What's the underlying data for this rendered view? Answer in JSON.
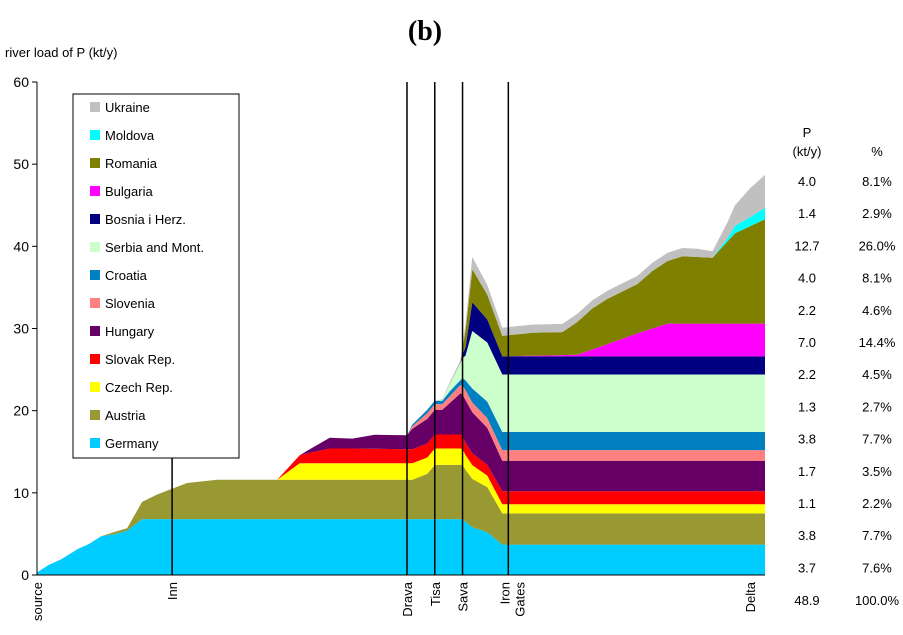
{
  "chart_data": {
    "type": "area",
    "panel_label": "(b)",
    "ylabel": "river load of P (kt/y)",
    "ylim": [
      0,
      60
    ],
    "yticks": [
      0,
      10,
      20,
      30,
      40,
      50,
      60
    ],
    "grid": false,
    "legend_position": "top-left",
    "x": [
      0,
      1.5,
      3.2,
      5.5,
      7,
      8.5,
      10.5,
      12,
      14,
      16,
      18,
      20,
      24,
      27,
      32,
      35,
      36,
      39,
      42,
      45,
      49.3,
      50,
      52,
      53,
      54,
      54.6,
      55,
      56,
      56.4,
      56.7,
      57.1,
      58,
      60,
      62,
      64,
      65,
      66,
      68,
      70,
      72,
      74,
      76,
      78,
      80,
      82,
      84,
      86,
      88,
      90,
      92,
      93,
      95,
      97
    ],
    "x_labels": [
      {
        "text": "source",
        "x": 0
      },
      {
        "text": "Inn",
        "x": 18
      },
      {
        "text": "Drava",
        "x": 49.3
      },
      {
        "text": "Tisa",
        "x": 53
      },
      {
        "text": "Sava",
        "x": 56.7
      },
      {
        "text": "Iron",
        "x": 62.3
      },
      {
        "text": "Gates",
        "x": 64.3
      },
      {
        "text": "Delta",
        "x": 95
      }
    ],
    "markers": [
      {
        "name": "Inn",
        "x": 18,
        "top": 15
      },
      {
        "name": "Drava",
        "x": 49.3,
        "top": 60
      },
      {
        "name": "Tisa",
        "x": 53,
        "top": 60
      },
      {
        "name": "Sava",
        "x": 56.7,
        "top": 60
      },
      {
        "name": "Iron Gates",
        "x": 62.8,
        "top": 60
      }
    ],
    "series": [
      {
        "name": "Germany",
        "color": "#00ccff",
        "values": [
          0.3,
          1.2,
          1.9,
          3.2,
          3.8,
          4.7,
          5.0,
          5.4,
          6.8,
          6.8,
          6.8,
          6.8,
          6.8,
          6.8,
          6.8,
          6.8,
          6.8,
          6.8,
          6.8,
          6.8,
          6.8,
          6.8,
          6.8,
          6.8,
          6.8,
          6.8,
          6.8,
          6.8,
          6.8,
          6.8,
          6.5,
          5.8,
          5.2,
          3.7,
          3.7,
          3.7,
          3.7,
          3.7,
          3.7,
          3.7,
          3.7,
          3.7,
          3.7,
          3.7,
          3.7,
          3.7,
          3.7,
          3.7,
          3.7,
          3.7,
          3.7,
          3.7,
          3.7
        ]
      },
      {
        "name": "Austria",
        "color": "#999933",
        "values": [
          0.0,
          0.0,
          0.0,
          0.0,
          0.0,
          0.0,
          0.3,
          0.3,
          2.1,
          3.0,
          3.7,
          4.4,
          4.8,
          4.8,
          4.8,
          4.8,
          4.8,
          4.8,
          4.8,
          4.8,
          4.8,
          4.8,
          5.5,
          6.6,
          6.6,
          6.6,
          6.6,
          6.6,
          6.6,
          6.6,
          6.3,
          5.9,
          5.5,
          3.8,
          3.8,
          3.8,
          3.8,
          3.8,
          3.8,
          3.8,
          3.8,
          3.8,
          3.8,
          3.8,
          3.8,
          3.8,
          3.8,
          3.8,
          3.8,
          3.8,
          3.8,
          3.8,
          3.8
        ]
      },
      {
        "name": "Czech Rep.",
        "color": "#ffff00",
        "values": [
          0,
          0,
          0,
          0,
          0,
          0,
          0,
          0,
          0,
          0,
          0,
          0,
          0,
          0,
          0,
          0,
          0,
          0,
          0,
          0,
          0,
          0,
          0,
          0,
          0,
          0,
          0,
          0,
          0,
          0,
          0,
          0,
          0,
          0,
          0,
          0,
          0,
          0,
          0,
          0,
          0,
          0,
          0,
          0,
          0,
          0,
          0,
          0,
          0,
          0,
          0,
          0,
          0
        ]
      },
      {
        "name": "Slovak Rep.",
        "color": "#ff0000",
        "values": [
          0,
          0,
          0,
          0,
          0,
          0,
          0,
          0,
          0,
          0,
          0,
          0,
          0,
          0,
          0,
          0,
          0,
          0,
          0,
          0,
          0,
          0,
          0,
          0,
          0,
          0,
          0,
          0,
          0,
          0,
          0,
          0,
          0,
          0,
          0,
          0,
          0,
          0,
          0,
          0,
          0,
          0,
          0,
          0,
          0,
          0,
          0,
          0,
          0,
          0,
          0,
          0,
          0
        ]
      },
      {
        "name": "Hungary",
        "color": "#660066",
        "values": [
          0,
          0,
          0,
          0,
          0,
          0,
          0,
          0,
          0,
          0,
          0,
          0,
          0,
          0,
          0,
          0,
          0,
          0,
          0,
          0,
          0,
          0,
          0,
          0,
          0,
          0,
          0,
          0,
          0,
          0,
          0,
          0,
          0,
          0,
          0,
          0,
          0,
          0,
          0,
          0,
          0,
          0,
          0,
          0,
          0,
          0,
          0,
          0,
          0,
          0,
          0,
          0,
          0
        ]
      },
      {
        "name": "Slovenia",
        "color": "#ff8080",
        "values": [
          0,
          0,
          0,
          0,
          0,
          0,
          0,
          0,
          0,
          0,
          0,
          0,
          0,
          0,
          0,
          0,
          0,
          0,
          0,
          0,
          0,
          0,
          0,
          0,
          0,
          0,
          0,
          0,
          0,
          0,
          0,
          0,
          0,
          0,
          0,
          0,
          0,
          0,
          0,
          0,
          0,
          0,
          0,
          0,
          0,
          0,
          0,
          0,
          0,
          0,
          0,
          0,
          0
        ]
      },
      {
        "name": "Croatia",
        "color": "#0080c0",
        "values": [
          0,
          0,
          0,
          0,
          0,
          0,
          0,
          0,
          0,
          0,
          0,
          0,
          0,
          0,
          0,
          0,
          0,
          0,
          0,
          0,
          0,
          0,
          0,
          0,
          0,
          0,
          0,
          0,
          0,
          0,
          0,
          0,
          0,
          0,
          0,
          0,
          0,
          0,
          0,
          0,
          0,
          0,
          0,
          0,
          0,
          0,
          0,
          0,
          0,
          0,
          0,
          0,
          0
        ]
      },
      {
        "name": "Serbia and Mont.",
        "color": "#ccffcc",
        "values": [
          0,
          0,
          0,
          0,
          0,
          0,
          0,
          0,
          0,
          0,
          0,
          0,
          0,
          0,
          0,
          0,
          0,
          0,
          0,
          0,
          0,
          0,
          0,
          0,
          0,
          0,
          0,
          0,
          0,
          0,
          0,
          0,
          0,
          0,
          0,
          0,
          0,
          0,
          0,
          0,
          0,
          0,
          0,
          0,
          0,
          0,
          0,
          0,
          0,
          0,
          0,
          0,
          0
        ]
      },
      {
        "name": "Bosnia i Herz.",
        "color": "#000080",
        "values": [
          0,
          0,
          0,
          0,
          0,
          0,
          0,
          0,
          0,
          0,
          0,
          0,
          0,
          0,
          0,
          0,
          0,
          0,
          0,
          0,
          0,
          0,
          0,
          0,
          0,
          0,
          0,
          0,
          0,
          0,
          0,
          0,
          0,
          0,
          0,
          0,
          0,
          0,
          0,
          0,
          0,
          0,
          0,
          0,
          0,
          0,
          0,
          0,
          0,
          0,
          0,
          0,
          0
        ]
      },
      {
        "name": "Bulgaria",
        "color": "#ff00ff",
        "values": [
          0,
          0,
          0,
          0,
          0,
          0,
          0,
          0,
          0,
          0,
          0,
          0,
          0,
          0,
          0,
          0,
          0,
          0,
          0,
          0,
          0,
          0,
          0,
          0,
          0,
          0,
          0,
          0,
          0,
          0,
          0,
          0,
          0,
          0,
          0,
          0,
          0,
          0,
          0,
          0,
          0,
          0,
          0,
          0,
          0,
          0,
          0,
          0,
          0,
          0,
          0,
          0,
          0
        ]
      },
      {
        "name": "Romania",
        "color": "#808000",
        "values": [
          0,
          0,
          0,
          0,
          0,
          0,
          0,
          0,
          0,
          0,
          0,
          0,
          0,
          0,
          0,
          0,
          0,
          0,
          0,
          0,
          0,
          0,
          0,
          0,
          0,
          0,
          0,
          0,
          0,
          0,
          0,
          0,
          0,
          0,
          0,
          0,
          0,
          0,
          0,
          0,
          0,
          0,
          0,
          0,
          0,
          0,
          0,
          0,
          0,
          0,
          0,
          0,
          0
        ]
      },
      {
        "name": "Moldova",
        "color": "#00ffff",
        "values": [
          0,
          0,
          0,
          0,
          0,
          0,
          0,
          0,
          0,
          0,
          0,
          0,
          0,
          0,
          0,
          0,
          0,
          0,
          0,
          0,
          0,
          0,
          0,
          0,
          0,
          0,
          0,
          0,
          0,
          0,
          0,
          0,
          0,
          0,
          0,
          0,
          0,
          0,
          0,
          0,
          0,
          0,
          0,
          0,
          0,
          0,
          0,
          0,
          0,
          0,
          0,
          0,
          0
        ]
      },
      {
        "name": "Ukraine",
        "color": "#c0c0c0",
        "values": [
          0,
          0,
          0,
          0,
          0,
          0,
          0,
          0,
          0,
          0,
          0,
          0,
          0,
          0,
          0,
          0,
          0,
          0,
          0,
          0,
          0,
          0,
          0,
          0,
          0,
          0,
          0,
          0,
          0,
          0,
          0,
          0,
          0,
          0,
          0,
          0,
          0,
          0,
          0,
          0,
          0,
          0,
          0,
          0,
          0,
          0,
          0,
          0,
          0,
          0,
          0,
          0,
          0
        ]
      }
    ],
    "table_header": {
      "p": "P",
      "unit": "(kt/y)",
      "pct": "%"
    },
    "table": [
      {
        "p": "4.0",
        "pct": "8.1%"
      },
      {
        "p": "1.4",
        "pct": "2.9%"
      },
      {
        "p": "12.7",
        "pct": "26.0%"
      },
      {
        "p": "4.0",
        "pct": "8.1%"
      },
      {
        "p": "2.2",
        "pct": "4.6%"
      },
      {
        "p": "7.0",
        "pct": "14.4%"
      },
      {
        "p": "2.2",
        "pct": "4.5%"
      },
      {
        "p": "1.3",
        "pct": "2.7%"
      },
      {
        "p": "3.8",
        "pct": "7.7%"
      },
      {
        "p": "1.7",
        "pct": "3.5%"
      },
      {
        "p": "1.1",
        "pct": "2.2%"
      },
      {
        "p": "3.8",
        "pct": "7.7%"
      },
      {
        "p": "3.7",
        "pct": "7.6%"
      }
    ],
    "table_total": {
      "p": "48.9",
      "pct": "100.0%"
    }
  }
}
